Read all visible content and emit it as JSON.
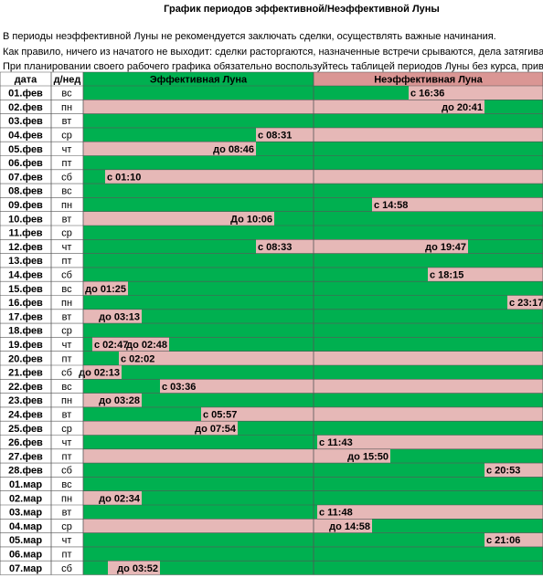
{
  "header": {
    "title": "График  периодов эффективной/Неэффективной Луны"
  },
  "intro": [
    "В периоды неэффективной Луны не рекомендуется заключать сделки, осуществлять важные начинания.",
    "Как правило, ничего из начатого не выходит: сделки расторгаются, назначенные встречи срываются, дела затягиваются",
    "При планировании своего рабочего графика обязательно воспользуйтесь таблицей периодов Луны без курса, приводимой"
  ],
  "table": {
    "columns": [
      "дата",
      "д/нед",
      "Эффективная Луна",
      "Неэффективная Луна"
    ],
    "rows": [
      {
        "date": "01.фев",
        "day": "вс",
        "labels": [
          "с 16:36"
        ]
      },
      {
        "date": "02.фев",
        "day": "пн",
        "labels": [
          "до 20:41"
        ]
      },
      {
        "date": "03.фев",
        "day": "вт",
        "labels": []
      },
      {
        "date": "04.фев",
        "day": "ср",
        "labels": [
          "с 08:31"
        ]
      },
      {
        "date": "05.фев",
        "day": "чт",
        "labels": [
          "до 08:46"
        ]
      },
      {
        "date": "06.фев",
        "day": "пт",
        "labels": []
      },
      {
        "date": "07.фев",
        "day": "сб",
        "labels": [
          "с 01:10"
        ]
      },
      {
        "date": "08.фев",
        "day": "вс",
        "labels": []
      },
      {
        "date": "09.фев",
        "day": "пн",
        "labels": [
          "с 14:58"
        ]
      },
      {
        "date": "10.фев",
        "day": "вт",
        "labels": [
          "До 10:06"
        ]
      },
      {
        "date": "11.фев",
        "day": "ср",
        "labels": []
      },
      {
        "date": "12.фев",
        "day": "чт",
        "labels": [
          "с 08:33",
          "до 19:47"
        ]
      },
      {
        "date": "13.фев",
        "day": "пт",
        "labels": []
      },
      {
        "date": "14.фев",
        "day": "сб",
        "labels": [
          "с 18:15"
        ]
      },
      {
        "date": "15.фев",
        "day": "вс",
        "labels": [
          "до 01:25"
        ]
      },
      {
        "date": "16.фев",
        "day": "пн",
        "labels": [
          "с 23:17"
        ]
      },
      {
        "date": "17.фев",
        "day": "вт",
        "labels": [
          "до 03:13"
        ]
      },
      {
        "date": "18.фев",
        "day": "ср",
        "labels": []
      },
      {
        "date": "19.фев",
        "day": "чт",
        "labels": [
          "с 02:47",
          "до 02:48"
        ]
      },
      {
        "date": "20.фев",
        "day": "пт",
        "labels": [
          "с 02:02"
        ]
      },
      {
        "date": "21.фев",
        "day": "сб",
        "labels": [
          "до 02:13"
        ]
      },
      {
        "date": "22.фев",
        "day": "вс",
        "labels": [
          "с 03:36"
        ]
      },
      {
        "date": "23.фев",
        "day": "пн",
        "labels": [
          "до 03:28"
        ]
      },
      {
        "date": "24.фев",
        "day": "вт",
        "labels": [
          "с 05:57"
        ]
      },
      {
        "date": "25.фев",
        "day": "ср",
        "labels": [
          "до 07:54"
        ]
      },
      {
        "date": "26.фев",
        "day": "чт",
        "labels": [
          "с 11:43"
        ]
      },
      {
        "date": "27.фев",
        "day": "пт",
        "labels": [
          "до 15:50"
        ]
      },
      {
        "date": "28.фев",
        "day": "сб",
        "labels": [
          "с 20:53"
        ]
      },
      {
        "date": "01.мар",
        "day": "вс",
        "labels": []
      },
      {
        "date": "02.мар",
        "day": "пн",
        "labels": [
          "до 02:34"
        ]
      },
      {
        "date": "03.мар",
        "day": "вт",
        "labels": [
          "с 11:48"
        ]
      },
      {
        "date": "04.мар",
        "day": "ср",
        "labels": [
          "до 14:58"
        ]
      },
      {
        "date": "05.мар",
        "day": "чт",
        "labels": [
          "с 21:06"
        ]
      },
      {
        "date": "06.мар",
        "day": "пт",
        "labels": []
      },
      {
        "date": "07.мар",
        "day": "сб",
        "labels": [
          "до 03:52"
        ]
      }
    ]
  }
}
